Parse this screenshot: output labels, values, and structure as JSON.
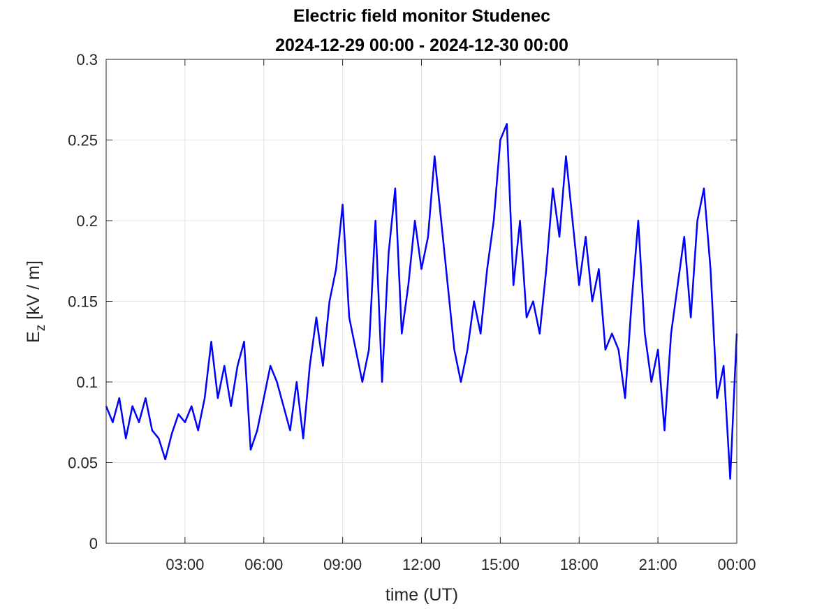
{
  "chart_data": {
    "type": "line",
    "title": "Electric field monitor Studenec",
    "subtitle": "2024-12-29 00:00 - 2024-12-30 00:00",
    "x_label": "time (UT)",
    "y_label": {
      "text": "E",
      "subscript": "z",
      "rest": " [kV / m]"
    },
    "x": [
      0,
      0.25,
      0.5,
      0.75,
      1,
      1.25,
      1.5,
      1.75,
      2,
      2.25,
      2.5,
      2.75,
      3,
      3.25,
      3.5,
      3.75,
      4,
      4.25,
      4.5,
      4.75,
      5,
      5.25,
      5.5,
      5.75,
      6,
      6.25,
      6.5,
      6.75,
      7,
      7.25,
      7.5,
      7.75,
      8,
      8.25,
      8.5,
      8.75,
      9,
      9.25,
      9.5,
      9.75,
      10,
      10.25,
      10.5,
      10.75,
      11,
      11.25,
      11.5,
      11.75,
      12,
      12.25,
      12.5,
      12.75,
      13,
      13.25,
      13.5,
      13.75,
      14,
      14.25,
      14.5,
      14.75,
      15,
      15.25,
      15.5,
      15.75,
      16,
      16.25,
      16.5,
      16.75,
      17,
      17.25,
      17.5,
      17.75,
      18,
      18.25,
      18.5,
      18.75,
      19,
      19.25,
      19.5,
      19.75,
      20,
      20.25,
      20.5,
      20.75,
      21,
      21.25,
      21.5,
      21.75,
      22,
      22.25,
      22.5,
      22.75,
      23,
      23.25,
      23.5,
      23.75,
      24
    ],
    "series": [
      {
        "color": "#0000ff",
        "values": [
          0.085,
          0.075,
          0.09,
          0.065,
          0.085,
          0.075,
          0.09,
          0.07,
          0.065,
          0.052,
          0.068,
          0.08,
          0.075,
          0.085,
          0.07,
          0.09,
          0.125,
          0.09,
          0.11,
          0.085,
          0.11,
          0.125,
          0.058,
          0.07,
          0.09,
          0.11,
          0.1,
          0.085,
          0.07,
          0.1,
          0.065,
          0.11,
          0.14,
          0.11,
          0.15,
          0.17,
          0.21,
          0.14,
          0.12,
          0.1,
          0.12,
          0.2,
          0.1,
          0.18,
          0.22,
          0.13,
          0.16,
          0.2,
          0.17,
          0.19,
          0.24,
          0.2,
          0.16,
          0.12,
          0.1,
          0.12,
          0.15,
          0.13,
          0.17,
          0.2,
          0.25,
          0.26,
          0.16,
          0.2,
          0.14,
          0.15,
          0.13,
          0.17,
          0.22,
          0.19,
          0.24,
          0.2,
          0.16,
          0.19,
          0.15,
          0.17,
          0.12,
          0.13,
          0.12,
          0.09,
          0.15,
          0.2,
          0.13,
          0.1,
          0.12,
          0.07,
          0.13,
          0.16,
          0.19,
          0.14,
          0.2,
          0.22,
          0.17,
          0.09,
          0.11,
          0.04,
          0.13
        ]
      }
    ],
    "xlim": [
      0,
      24
    ],
    "xticks": [
      {
        "value": 3,
        "label": "03:00"
      },
      {
        "value": 6,
        "label": "06:00"
      },
      {
        "value": 9,
        "label": "09:00"
      },
      {
        "value": 12,
        "label": "12:00"
      },
      {
        "value": 15,
        "label": "15:00"
      },
      {
        "value": 18,
        "label": "18:00"
      },
      {
        "value": 21,
        "label": "21:00"
      },
      {
        "value": 24,
        "label": "00:00"
      }
    ],
    "ylim": [
      0,
      0.3
    ],
    "yticks": [
      0,
      0.05,
      0.1,
      0.15,
      0.2,
      0.25,
      0.3
    ],
    "grid": true
  }
}
